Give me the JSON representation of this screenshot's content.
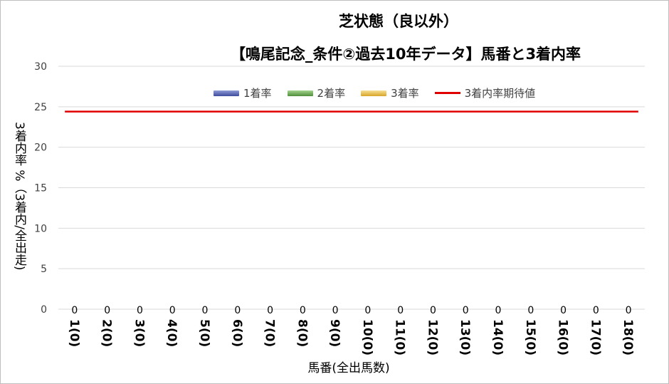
{
  "chart_data": {
    "type": "bar",
    "title": "芝状態（良以外）",
    "subtitle": "【鳴尾記念_条件②過去10年データ】馬番と3着内率",
    "xlabel": "馬番(全出馬数)",
    "ylabel": "3着内率 %（3着内/全出走)",
    "ylim": [
      0,
      30
    ],
    "yticks": [
      0,
      5,
      10,
      15,
      20,
      25,
      30
    ],
    "categories": [
      "1(0)",
      "2(0)",
      "3(0)",
      "4(0)",
      "5(0)",
      "6(0)",
      "7(0)",
      "8(0)",
      "9(0)",
      "10(0)",
      "11(0)",
      "12(0)",
      "13(0)",
      "14(0)",
      "15(0)",
      "16(0)",
      "17(0)",
      "18(0)"
    ],
    "series": [
      {
        "name": "1着率",
        "color": "#4a5aa8",
        "values": [
          0,
          0,
          0,
          0,
          0,
          0,
          0,
          0,
          0,
          0,
          0,
          0,
          0,
          0,
          0,
          0,
          0,
          0
        ]
      },
      {
        "name": "2着率",
        "color": "#5fa34a",
        "values": [
          0,
          0,
          0,
          0,
          0,
          0,
          0,
          0,
          0,
          0,
          0,
          0,
          0,
          0,
          0,
          0,
          0,
          0
        ]
      },
      {
        "name": "3着率",
        "color": "#e8b83a",
        "values": [
          0,
          0,
          0,
          0,
          0,
          0,
          0,
          0,
          0,
          0,
          0,
          0,
          0,
          0,
          0,
          0,
          0,
          0
        ]
      }
    ],
    "data_labels": [
      "0",
      "0",
      "0",
      "0",
      "0",
      "0",
      "0",
      "0",
      "0",
      "0",
      "0",
      "0",
      "0",
      "0",
      "0",
      "0",
      "0",
      "0"
    ],
    "expected_line": {
      "name": "3着内率期待値",
      "color": "#e00000",
      "value": 24.4
    },
    "grid": true,
    "legend_position": "top"
  }
}
